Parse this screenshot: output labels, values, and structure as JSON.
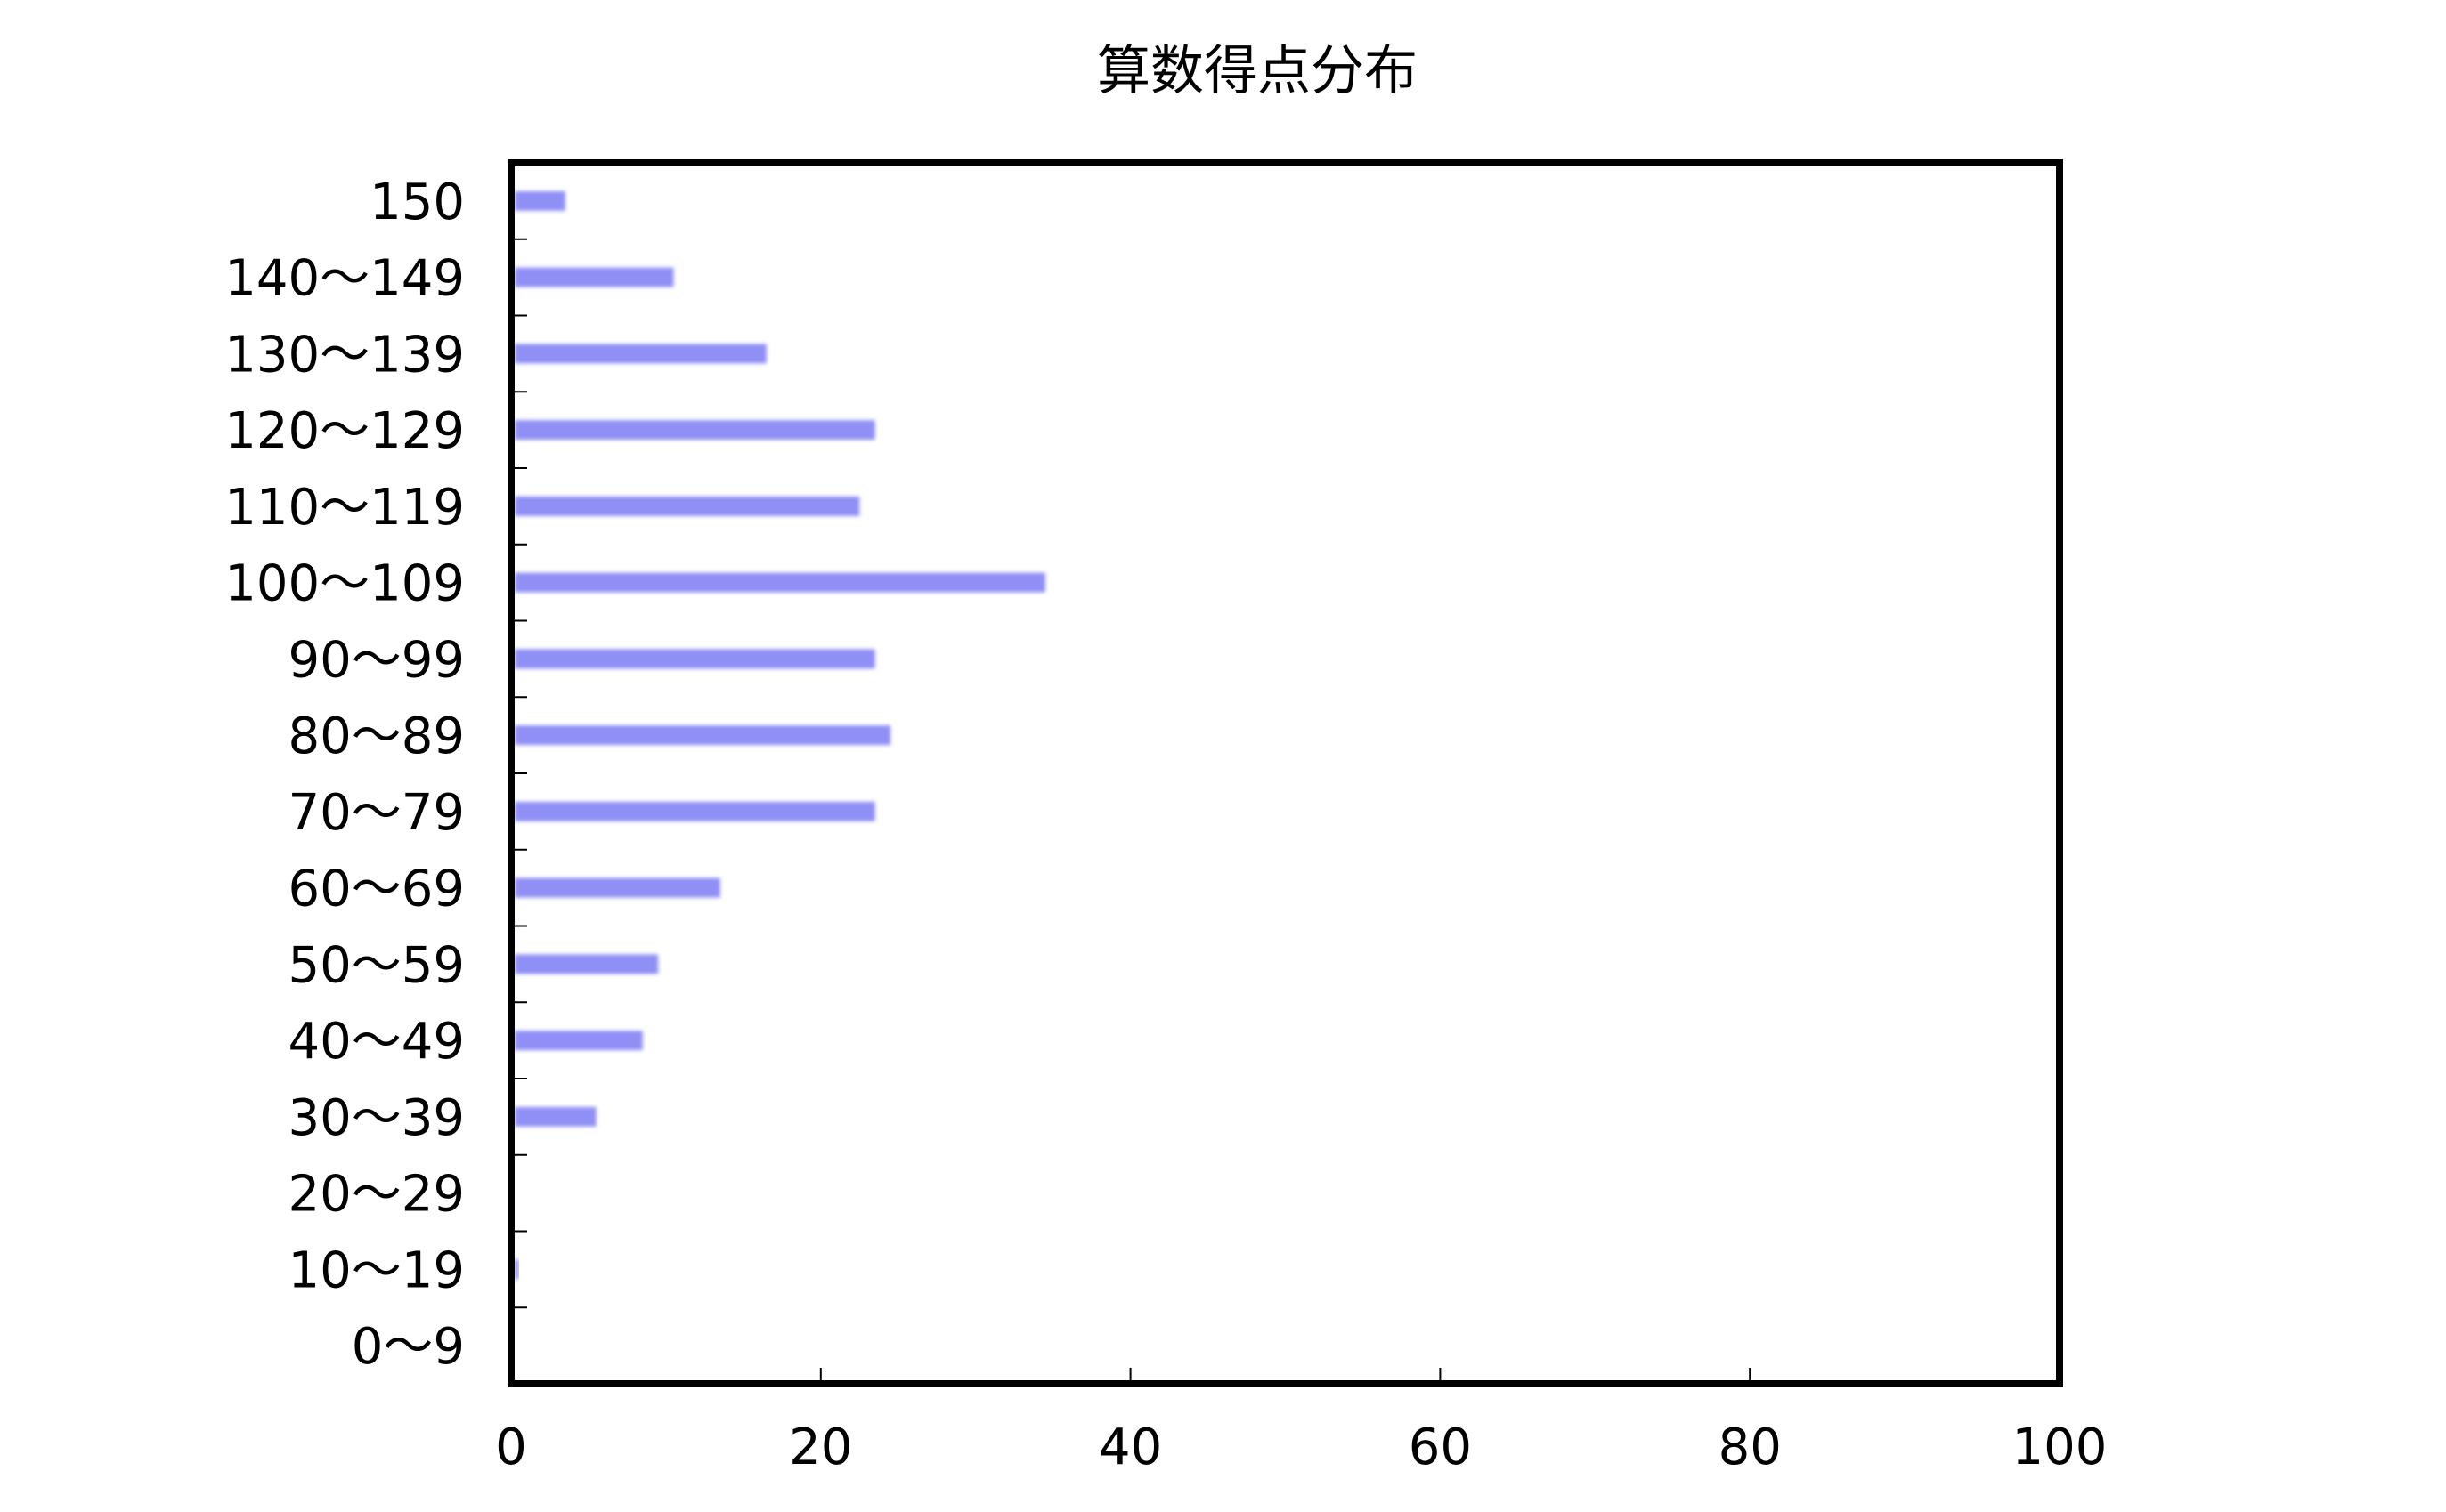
{
  "chart_data": {
    "type": "bar",
    "orientation": "horizontal",
    "title": "算数得点分布",
    "xlabel": "",
    "ylabel": "",
    "xlim": [
      0,
      100
    ],
    "x_ticks": [
      "0",
      "20",
      "40",
      "60",
      "80",
      "100"
    ],
    "grid": false,
    "categories": [
      "150",
      "140～149",
      "130～139",
      "120～129",
      "110～119",
      "100～109",
      "90～99",
      "80～89",
      "70～79",
      "60～69",
      "50～59",
      "40～49",
      "30～39",
      "20～29",
      "10～19",
      "0～9"
    ],
    "values": [
      3.5,
      10.5,
      16.5,
      23.5,
      22.5,
      34.5,
      23.5,
      24.5,
      23.5,
      13.5,
      9.5,
      8.5,
      5.5,
      0,
      0.5,
      0
    ],
    "bar_color": "#8f8ff5",
    "frame_color": "#000000"
  }
}
